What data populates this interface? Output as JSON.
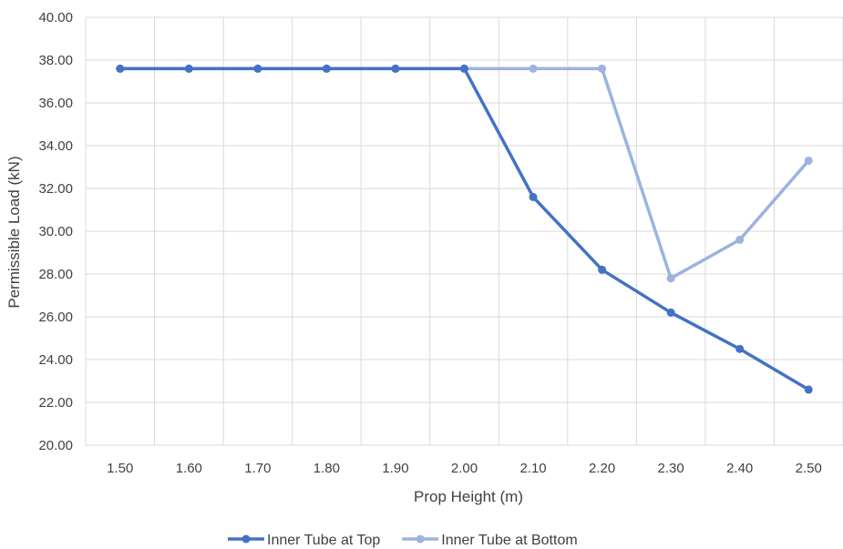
{
  "chart_data": {
    "type": "line",
    "title": "",
    "xlabel": "Prop Height (m)",
    "ylabel": "Permissible Load (kN)",
    "x": [
      "1.50",
      "1.60",
      "1.70",
      "1.80",
      "1.90",
      "2.00",
      "2.10",
      "2.20",
      "2.30",
      "2.40",
      "2.50"
    ],
    "ylim": [
      20,
      40
    ],
    "yticks": [
      "20.00",
      "22.00",
      "24.00",
      "26.00",
      "28.00",
      "30.00",
      "32.00",
      "34.00",
      "36.00",
      "38.00",
      "40.00"
    ],
    "grid": true,
    "legend_position": "bottom",
    "series": [
      {
        "name": "Inner Tube at Top",
        "color": "#4472c4",
        "values": [
          37.6,
          37.6,
          37.6,
          37.6,
          37.6,
          37.6,
          31.6,
          28.2,
          26.2,
          24.5,
          22.6
        ]
      },
      {
        "name": "Inner Tube at Bottom",
        "color": "#9eb2e0",
        "values": [
          37.6,
          37.6,
          37.6,
          37.6,
          37.6,
          37.6,
          37.6,
          37.6,
          27.8,
          29.6,
          33.3
        ]
      }
    ]
  }
}
